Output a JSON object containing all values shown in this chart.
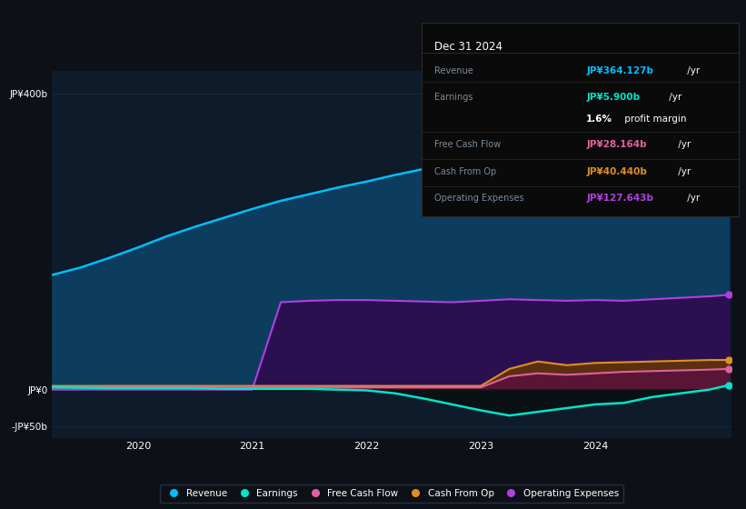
{
  "bg_color": "#0d1117",
  "plot_bg_color": "#0d1b2a",
  "ylim": [
    -65,
    430
  ],
  "yticks": [
    -50,
    0,
    400
  ],
  "ytick_labels": [
    "-JP¥50b",
    "JP¥0",
    "JP¥400b"
  ],
  "xtick_positions": [
    2019.75,
    2020.75,
    2021.75,
    2022.75,
    2023.75
  ],
  "xtick_labels": [
    "2020",
    "2021",
    "2022",
    "2023",
    "2024"
  ],
  "x": [
    2019.0,
    2019.25,
    2019.5,
    2019.75,
    2020.0,
    2020.25,
    2020.5,
    2020.75,
    2021.0,
    2021.25,
    2021.5,
    2021.75,
    2022.0,
    2022.25,
    2022.5,
    2022.75,
    2023.0,
    2023.25,
    2023.5,
    2023.75,
    2024.0,
    2024.25,
    2024.5,
    2024.75,
    2024.92
  ],
  "revenue": [
    155,
    165,
    178,
    192,
    207,
    220,
    232,
    244,
    255,
    264,
    273,
    281,
    290,
    298,
    306,
    314,
    320,
    322,
    318,
    314,
    310,
    320,
    335,
    350,
    364
  ],
  "operating_expenses": [
    0,
    0,
    0,
    0,
    0,
    0,
    0,
    0,
    118,
    120,
    121,
    121,
    120,
    119,
    118,
    120,
    122,
    121,
    120,
    121,
    120,
    122,
    124,
    126,
    128
  ],
  "free_cash_flow": [
    3,
    3,
    3,
    3,
    3,
    3,
    3,
    3,
    3,
    3,
    3,
    3,
    3,
    3,
    3,
    3,
    18,
    22,
    20,
    22,
    24,
    25,
    26,
    27,
    28
  ],
  "cash_from_op": [
    5,
    5,
    5,
    5,
    5,
    5,
    5,
    5,
    5,
    5,
    5,
    5,
    5,
    5,
    5,
    5,
    28,
    38,
    33,
    36,
    37,
    38,
    39,
    40,
    40
  ],
  "earnings": [
    3,
    2.5,
    2,
    2,
    2,
    2,
    1,
    1,
    1,
    1,
    0,
    -1,
    -5,
    -12,
    -20,
    -28,
    -35,
    -30,
    -25,
    -20,
    -18,
    -10,
    -5,
    0,
    6
  ],
  "revenue_line_color": "#00bfff",
  "revenue_fill_color": "#0d3d5e",
  "earnings_line_color": "#00e5cc",
  "earnings_fill_neg_color": "#0a1a15",
  "earnings_fill_pos_color": "#0a2a20",
  "fcf_line_color": "#e060a0",
  "fcf_fill_color": "#5a1535",
  "cfop_line_color": "#e09020",
  "cfop_fill_color": "#5a3010",
  "opex_line_color": "#b040e0",
  "opex_fill_color": "#2a1050",
  "grid_color": "#1e3045",
  "info_box_bg": "#0a0a0a",
  "info_box_border": "#2a2a2a",
  "info_box_title": "Dec 31 2024",
  "info_rows": [
    {
      "label": "Revenue",
      "value": "JP¥364.127b",
      "suffix": " /yr",
      "vcolor": "#00bfff",
      "sep": true
    },
    {
      "label": "Earnings",
      "value": "JP¥5.900b",
      "suffix": " /yr",
      "vcolor": "#00e5cc",
      "sep": true
    },
    {
      "label": "",
      "value": "1.6%",
      "suffix": " profit margin",
      "vcolor": "#ffffff",
      "sep": false
    },
    {
      "label": "Free Cash Flow",
      "value": "JP¥28.164b",
      "suffix": " /yr",
      "vcolor": "#e060a0",
      "sep": true
    },
    {
      "label": "Cash From Op",
      "value": "JP¥40.440b",
      "suffix": " /yr",
      "vcolor": "#e09020",
      "sep": true
    },
    {
      "label": "Operating Expenses",
      "value": "JP¥127.643b",
      "suffix": " /yr",
      "vcolor": "#b040e0",
      "sep": true
    }
  ],
  "legend": [
    {
      "label": "Revenue",
      "color": "#00bfff"
    },
    {
      "label": "Earnings",
      "color": "#00e5cc"
    },
    {
      "label": "Free Cash Flow",
      "color": "#e060a0"
    },
    {
      "label": "Cash From Op",
      "color": "#e09020"
    },
    {
      "label": "Operating Expenses",
      "color": "#b040e0"
    }
  ]
}
